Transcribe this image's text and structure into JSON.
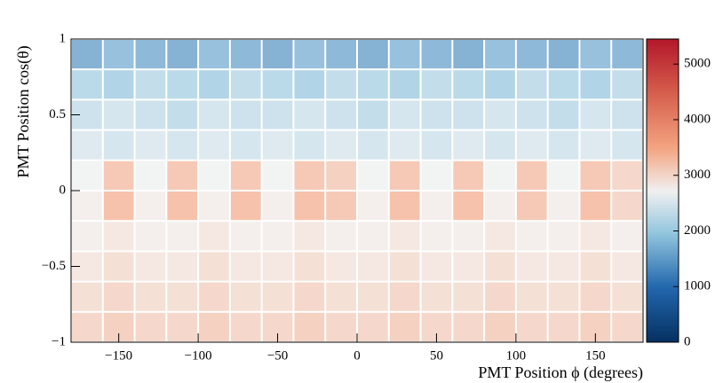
{
  "chart_data": {
    "type": "heatmap",
    "xlabel": "PMT Position ϕ (degrees)",
    "ylabel": "PMT Position cos(θ)",
    "x": [
      -170,
      -150,
      -130,
      -110,
      -90,
      -70,
      -50,
      -30,
      -10,
      10,
      30,
      50,
      70,
      90,
      110,
      130,
      150,
      170
    ],
    "y": [
      0.9,
      0.7,
      0.5,
      0.3,
      0.1,
      -0.1,
      -0.3,
      -0.5,
      -0.7,
      -0.9
    ],
    "z": [
      [
        1500,
        1700,
        1600,
        1500,
        1700,
        1600,
        1500,
        1700,
        1600,
        1500,
        1700,
        1600,
        1500,
        1700,
        1600,
        1500,
        1700,
        1600
      ],
      [
        2100,
        2000,
        2200,
        2100,
        2000,
        2200,
        2100,
        2000,
        2200,
        2100,
        2000,
        2200,
        2100,
        2000,
        2200,
        2100,
        2000,
        2200
      ],
      [
        2300,
        2400,
        2300,
        2200,
        2400,
        2300,
        2300,
        2400,
        2300,
        2200,
        2400,
        2300,
        2300,
        2400,
        2300,
        2200,
        2400,
        2300
      ],
      [
        2500,
        2400,
        2500,
        2400,
        2500,
        2400,
        2500,
        2400,
        2500,
        2400,
        2500,
        2400,
        2500,
        2400,
        2500,
        2400,
        2500,
        2400
      ],
      [
        2700,
        3300,
        2700,
        3300,
        2700,
        3300,
        2700,
        3300,
        3200,
        2700,
        3300,
        2700,
        3300,
        2700,
        3300,
        2700,
        3300,
        3100
      ],
      [
        2800,
        3400,
        2800,
        3400,
        2800,
        3400,
        2800,
        3400,
        3300,
        2800,
        3400,
        2800,
        3400,
        2800,
        3300,
        2800,
        3400,
        3100
      ],
      [
        2800,
        2900,
        2800,
        2800,
        2900,
        2800,
        2800,
        2900,
        2800,
        2800,
        2900,
        2800,
        2800,
        2900,
        2800,
        2800,
        2900,
        2800
      ],
      [
        2900,
        3000,
        2900,
        2900,
        3000,
        2900,
        2900,
        3000,
        2900,
        2900,
        3000,
        2900,
        2900,
        3000,
        2900,
        2900,
        3000,
        2900
      ],
      [
        3000,
        3100,
        3000,
        3000,
        3100,
        3000,
        3000,
        3100,
        3000,
        3000,
        3100,
        3000,
        3000,
        3100,
        3000,
        3000,
        3100,
        3000
      ],
      [
        3100,
        3200,
        3100,
        3100,
        3200,
        3100,
        3100,
        3200,
        3100,
        3100,
        3200,
        3100,
        3100,
        3200,
        3100,
        3100,
        3200,
        3100
      ]
    ],
    "xlim": [
      -180,
      180
    ],
    "ylim": [
      -1,
      1
    ],
    "zlim": [
      0,
      5450
    ],
    "xticks": [
      {
        "value": -150,
        "label": "−150"
      },
      {
        "value": -100,
        "label": "−100"
      },
      {
        "value": -50,
        "label": "−50"
      },
      0,
      50,
      100,
      150
    ],
    "yticks": [
      {
        "value": -1,
        "label": "−1"
      },
      {
        "value": -0.5,
        "label": "−0.5"
      },
      0,
      0.5,
      1
    ],
    "zticks": [
      0,
      1000,
      2000,
      3000,
      4000,
      5000
    ]
  }
}
